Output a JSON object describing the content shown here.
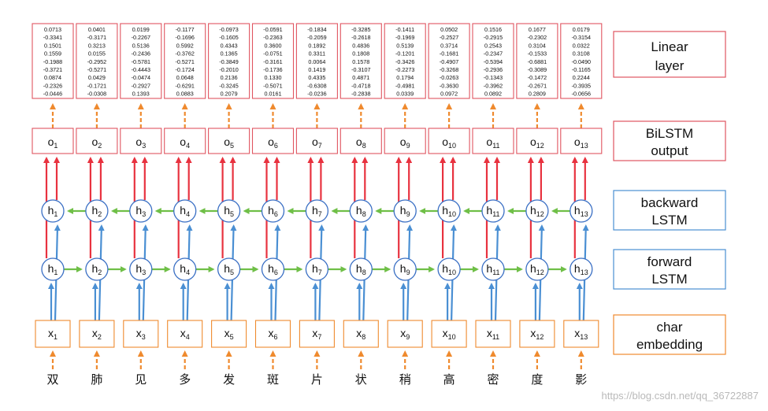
{
  "colors": {
    "red": "#e8323f",
    "blue": "#4a8fd3",
    "green": "#6fbf47",
    "orange": "#ef8a2e",
    "node_border": "#3a6fc4"
  },
  "characters": [
    "双",
    "肺",
    "见",
    "多",
    "发",
    "斑",
    "片",
    "状",
    "稍",
    "高",
    "密",
    "度",
    "影"
  ],
  "embeddings": {
    "prefix": "x",
    "subs": [
      "1",
      "2",
      "3",
      "4",
      "5",
      "6",
      "7",
      "8",
      "9",
      "10",
      "11",
      "12",
      "13"
    ]
  },
  "forward_states": {
    "prefix": "h",
    "subs": [
      "1",
      "2",
      "3",
      "4",
      "5",
      "6",
      "7",
      "8",
      "9",
      "10",
      "11",
      "12",
      "13"
    ]
  },
  "backward_states": {
    "prefix": "h",
    "subs": [
      "1",
      "2",
      "3",
      "4",
      "5",
      "6",
      "7",
      "8",
      "9",
      "10",
      "11",
      "12",
      "13"
    ]
  },
  "outputs": {
    "prefix": "o",
    "subs": [
      "1",
      "2",
      "3",
      "4",
      "5",
      "6",
      "7",
      "8",
      "9",
      "10",
      "11",
      "12",
      "13"
    ]
  },
  "linear_vectors": [
    [
      "0.0713",
      "-0.3341",
      "0.1501",
      "0.1559",
      "-0.1988",
      "-0.3721",
      "0.0874",
      "-0.2326",
      "-0.0446"
    ],
    [
      "0.0401",
      "-0.3171",
      "0.3213",
      "0.0155",
      "-0.2952",
      "-0.5271",
      "0.0429",
      "-0.1721",
      "-0.0308"
    ],
    [
      "0.0199",
      "-0.2267",
      "0.5136",
      "-0.2436",
      "-0.5781",
      "-0.4443",
      "-0.0474",
      "-0.2927",
      "0.1393"
    ],
    [
      "-0.1177",
      "-0.1696",
      "0.5992",
      "-0.3762",
      "-0.5271",
      "-0.1724",
      "0.0648",
      "-0.6291",
      "0.0883"
    ],
    [
      "-0.0973",
      "-0.1605",
      "0.4343",
      "0.1365",
      "-0.3849",
      "-0.2010",
      "0.2136",
      "-0.3245",
      "0.2079"
    ],
    [
      "-0.0591",
      "-0.2363",
      "0.3600",
      "-0.0751",
      "-0.3161",
      "-0.1736",
      "0.1330",
      "-0.5071",
      "0.0161"
    ],
    [
      "-0.1834",
      "-0.2059",
      "0.1892",
      "0.3311",
      "0.0064",
      "0.1419",
      "0.4335",
      "-0.6308",
      "-0.0236"
    ],
    [
      "-0.3285",
      "-0.2618",
      "0.4836",
      "0.1808",
      "0.1578",
      "-0.3107",
      "0.4871",
      "-0.4718",
      "-0.2838"
    ],
    [
      "-0.1411",
      "-0.1969",
      "0.5139",
      "-0.1201",
      "-0.3426",
      "-0.2273",
      "0.1794",
      "-0.4981",
      "0.0339"
    ],
    [
      "0.0502",
      "-0.2527",
      "0.3714",
      "-0.1681",
      "-0.4907",
      "-0.3268",
      "-0.0263",
      "-0.3630",
      "0.0972"
    ],
    [
      "0.1516",
      "-0.2915",
      "0.2543",
      "-0.2347",
      "-0.5394",
      "-0.2936",
      "-0.1343",
      "-0.3962",
      "0.0892"
    ],
    [
      "0.1677",
      "-0.2302",
      "0.3104",
      "-0.1533",
      "-0.6881",
      "-0.3089",
      "-0.1472",
      "-0.2671",
      "0.2809"
    ],
    [
      "0.0179",
      "-0.3154",
      "0.0322",
      "0.3108",
      "-0.0490",
      "-0.1165",
      "0.2244",
      "-0.3935",
      "-0.0656"
    ]
  ],
  "legend": {
    "linear": [
      "Linear",
      "layer"
    ],
    "bilstm": [
      "BiLSTM",
      "output"
    ],
    "backward": [
      "backward",
      "LSTM"
    ],
    "forward": [
      "forward",
      "LSTM"
    ],
    "embedding": [
      "char",
      "embedding"
    ]
  },
  "watermark": "https://blog.csdn.net/qq_36722887"
}
